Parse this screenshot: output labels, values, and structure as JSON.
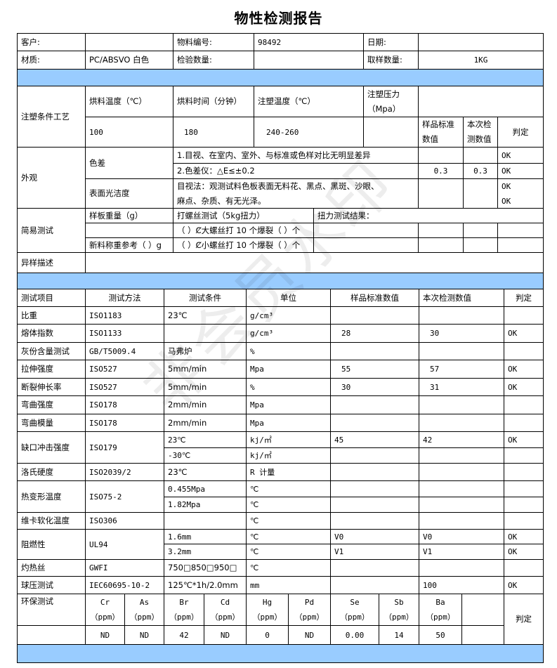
{
  "title": "物性检测报告",
  "watermark": "非会员水印",
  "header": {
    "customer_label": "客户:",
    "customer_value": "",
    "material_no_label": "物料编号:",
    "material_no_value": "98492",
    "date_label": "日期:",
    "date_value": "",
    "material_label": "材质:",
    "material_value": "PC/ABSVO 白色",
    "inspect_qty_label": "检验数量:",
    "inspect_qty_value": "",
    "sample_qty_label": "取样数量:",
    "sample_qty_value": "1KG"
  },
  "molding": {
    "label": "注塑条件工艺",
    "dry_temp_label": "烘料温度（℃）",
    "dry_time_label": "烘料时间（分钟）",
    "mold_temp_label": "注塑温度（℃）",
    "pressure_label": "注塑压力\n（Mpa）",
    "dry_temp": "100",
    "dry_time": "180",
    "mold_temp": "240-260",
    "pressure": "",
    "std_label": "样品标准\n数值",
    "actual_label": "本次检\n测数值",
    "verdict_label": "判定"
  },
  "appearance": {
    "label": "外观",
    "color_diff_label": "色差",
    "item1": "1.目视、在室内、室外、与标准或色样对比无明显差异",
    "item1_verdict": "OK",
    "item2": "2.色差仪：△E≤±0.2",
    "item2_std": "0.3",
    "item2_actual": "0.3",
    "item2_verdict": "OK",
    "surface_label": "表面光洁度",
    "surface_text": "目视法：观测试料色板表面无料花、黑点、黑斑、沙眼、\n麻点、杂质、有无光泽。",
    "surface_verdict": "OK\nOK"
  },
  "simple_test": {
    "label": "简易测试",
    "weight_label": "样板重量（g）",
    "screw_label": "打螺丝测试（5kg扭力）",
    "torque_label": "扭力测试结果：",
    "big_screw": "（ ）Ȼ大螺丝打 10 个爆裂（ ）个",
    "new_weight_label": "新料称重参考（  ）g",
    "small_screw": "（ ）Ȼ小螺丝打 10 个爆裂（ ）个"
  },
  "anomaly": {
    "label": "异样描述",
    "value": ""
  },
  "tests": {
    "headers": [
      "测试项目",
      "测试方法",
      "测试条件",
      "单位",
      "样品标准数值",
      "本次检测数值",
      "判定"
    ],
    "rows": [
      [
        "比重",
        "ISO1183",
        "23℃",
        "g/cm³",
        "",
        "",
        ""
      ],
      [
        "熔体指数",
        "ISO1133",
        "",
        "g/cm³",
        "28",
        "30",
        "OK"
      ],
      [
        "灰份含量测试",
        "GB/T5009.4",
        "马弗炉",
        "%",
        "",
        "",
        ""
      ],
      [
        "拉伸强度",
        "ISO527",
        "5mm/min",
        "Mpa",
        "55",
        "57",
        "OK"
      ],
      [
        "断裂伸长率",
        "ISO527",
        "5mm/min",
        "%",
        "30",
        "31",
        "OK"
      ],
      [
        "弯曲强度",
        "ISO178",
        "2mm/min",
        "Mpa",
        "",
        "",
        ""
      ],
      [
        "弯曲模量",
        "ISO178",
        "2mm/min",
        "Mpa",
        "",
        "",
        ""
      ]
    ],
    "impact": {
      "name": "缺口冲击强度",
      "method": "ISO179",
      "sub": [
        [
          "23℃",
          "kj/㎡",
          "45",
          "42",
          "OK"
        ],
        [
          "-30℃",
          "kj/㎡",
          "",
          "",
          ""
        ]
      ]
    },
    "rockwell": [
      "洛氏硬度",
      "ISO2039/2",
      "23℃",
      "R 计量",
      "",
      "",
      ""
    ],
    "hdt": {
      "name": "热变形温度",
      "method": "ISO75-2",
      "sub": [
        [
          "0.455Mpa",
          "℃",
          "",
          "",
          ""
        ],
        [
          "1.82Mpa",
          "℃",
          "",
          "",
          ""
        ]
      ]
    },
    "vicat": [
      "维卡软化温度",
      "ISO306",
      "",
      "℃",
      "",
      "",
      ""
    ],
    "flame": {
      "name": "阻燃性",
      "method": "UL94",
      "sub": [
        [
          "1.6mm",
          "℃",
          "V0",
          "V0",
          "OK"
        ],
        [
          "3.2mm",
          "℃",
          "V1",
          "V1",
          "OK"
        ]
      ]
    },
    "glow": [
      "灼热丝",
      "GWFI",
      "750□850□950□",
      "℃",
      "",
      "",
      ""
    ],
    "ball": [
      "球压测试",
      "IEC60695-10-2",
      "125℃*1h/2.0mm",
      "mm",
      "",
      "100",
      "OK"
    ]
  },
  "env": {
    "label": "环保测试",
    "elements": [
      "Cr\n（ppm）",
      "As\n（ppm）",
      "Br\n（ppm）",
      "Cd\n（ppm）",
      "Hg\n（ppm）",
      "Pd\n（ppm）",
      "Se\n（ppm）",
      "Sb\n（ppm）",
      "Ba\n（ppm）"
    ],
    "values": [
      "ND",
      "ND",
      "42",
      "ND",
      "0",
      "ND",
      "0.00",
      "14",
      "50"
    ],
    "verdict_label": "判定"
  }
}
